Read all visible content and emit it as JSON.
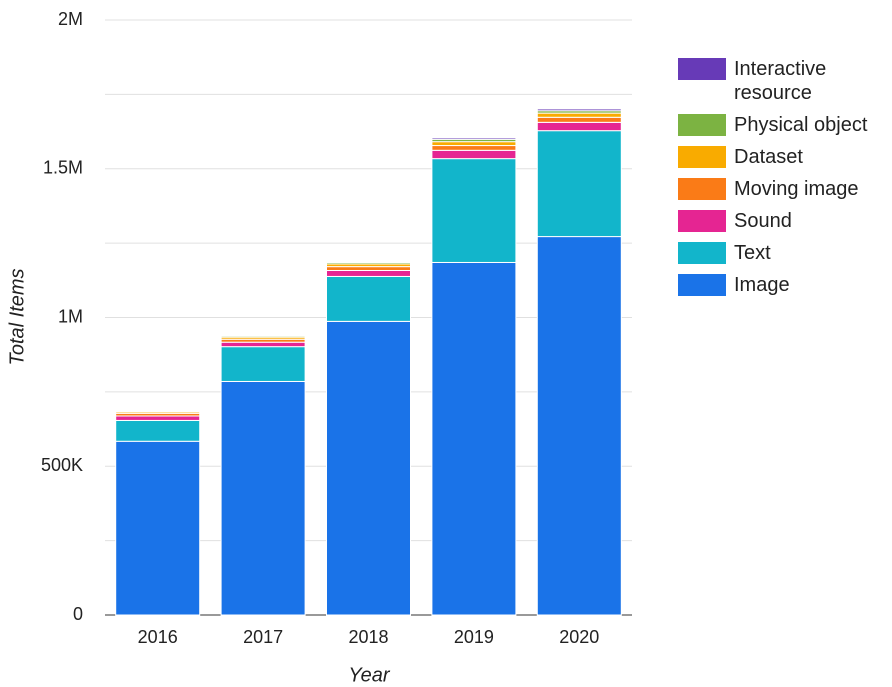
{
  "chart_data": {
    "type": "stacked_bar",
    "x_label": "Year",
    "y_label": "Total Items",
    "categories": [
      "2016",
      "2017",
      "2018",
      "2019",
      "2020"
    ],
    "series": [
      {
        "name": "Image",
        "color": "#1a73e8",
        "values": [
          584000,
          785000,
          987000,
          1185000,
          1272000
        ]
      },
      {
        "name": "Text",
        "color": "#12b5cb",
        "values": [
          70000,
          117000,
          151000,
          349000,
          356000
        ]
      },
      {
        "name": "Sound",
        "color": "#e52592",
        "values": [
          15000,
          15000,
          20000,
          28000,
          28000
        ]
      },
      {
        "name": "Moving image",
        "color": "#fa7b17",
        "values": [
          9000,
          10000,
          13000,
          16000,
          17000
        ]
      },
      {
        "name": "Dataset",
        "color": "#f9ab00",
        "values": [
          5000,
          7000,
          9000,
          13000,
          14000
        ]
      },
      {
        "name": "Physical object",
        "color": "#7cb342",
        "values": [
          3000,
          4000,
          5000,
          8000,
          8000
        ]
      },
      {
        "name": "Interactive resource",
        "color": "#673ab7",
        "values": [
          2000,
          2000,
          3000,
          5000,
          6000
        ]
      }
    ],
    "ylim": [
      0,
      2000000
    ],
    "yticks": [
      0,
      {
        "value": 500000,
        "label": "500K"
      },
      {
        "value": 1000000,
        "label": "1M"
      },
      {
        "value": 1500000,
        "label": "1.5M"
      },
      {
        "value": 2000000,
        "label": "2M"
      }
    ],
    "minor_yticks": [
      250000,
      750000,
      1250000,
      1750000
    ],
    "grid": true,
    "legend": "right"
  }
}
